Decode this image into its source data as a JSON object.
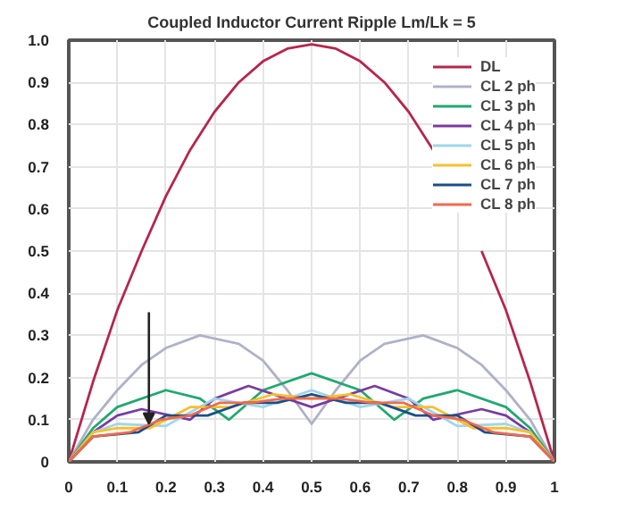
{
  "chart_data": {
    "type": "line",
    "title": "Coupled Inductor Current Ripple Lm/Lk = 5",
    "xlim": [
      0,
      1
    ],
    "xticks": [
      0,
      0.1,
      0.2,
      0.3,
      0.4,
      0.5,
      0.6,
      0.7,
      0.8,
      0.9,
      1
    ],
    "ylim": [
      0,
      1
    ],
    "yticks": [
      0,
      0.1,
      0.2,
      0.3,
      0.4,
      0.5,
      0.6,
      0.7,
      0.8,
      0.9,
      {
        "value": 1,
        "label": "1.0"
      }
    ],
    "grid": true,
    "legend": "top right",
    "marker": "none",
    "line_style": "solid",
    "series": [
      {
        "name": "DL",
        "color": "#b5264c",
        "x": [
          0,
          0.05,
          0.1,
          0.15,
          0.2,
          0.25,
          0.3,
          0.35,
          0.4,
          0.45,
          0.5,
          0.55,
          0.6,
          0.65,
          0.7,
          0.75,
          0.8,
          0.85,
          0.9,
          0.95,
          1
        ],
        "values": [
          0,
          0.19,
          0.36,
          0.5,
          0.63,
          0.74,
          0.83,
          0.9,
          0.95,
          0.98,
          0.99,
          0.98,
          0.95,
          0.9,
          0.83,
          0.74,
          null,
          0.5,
          0.36,
          0.19,
          0
        ]
      },
      {
        "name": "CL 2 ph",
        "color": "#b0b0c8",
        "x": [
          0,
          0.05,
          0.1,
          0.15,
          0.2,
          0.27,
          0.35,
          0.4,
          0.45,
          0.5,
          0.55,
          0.6,
          0.65,
          0.73,
          0.8,
          0.85,
          0.9,
          0.95,
          1
        ],
        "values": [
          0,
          0.1,
          0.17,
          0.23,
          0.27,
          0.3,
          0.28,
          0.24,
          0.17,
          0.09,
          0.17,
          0.24,
          0.28,
          0.3,
          0.27,
          0.23,
          0.17,
          0.1,
          0
        ]
      },
      {
        "name": "CL 3 ph",
        "color": "#20a870",
        "x": [
          0,
          0.05,
          0.1,
          0.2,
          0.27,
          0.33,
          0.4,
          0.5,
          0.6,
          0.67,
          0.73,
          0.8,
          0.9,
          0.95,
          1
        ],
        "values": [
          0,
          0.08,
          0.13,
          0.17,
          0.15,
          0.1,
          0.17,
          0.21,
          0.17,
          0.1,
          0.15,
          0.17,
          0.13,
          0.08,
          0
        ]
      },
      {
        "name": "CL 4 ph",
        "color": "#7a3aa0",
        "x": [
          0,
          0.05,
          0.1,
          0.15,
          0.25,
          0.3,
          0.37,
          0.5,
          0.63,
          0.7,
          0.75,
          0.85,
          0.9,
          0.95,
          1
        ],
        "values": [
          0,
          0.07,
          0.11,
          0.125,
          0.1,
          0.15,
          0.18,
          0.13,
          0.18,
          0.15,
          0.1,
          0.125,
          0.11,
          0.07,
          0
        ]
      },
      {
        "name": "CL 5 ph",
        "color": "#9fd6ea",
        "x": [
          0,
          0.05,
          0.1,
          0.2,
          0.3,
          0.4,
          0.5,
          0.6,
          0.7,
          0.8,
          0.9,
          0.95,
          1
        ],
        "values": [
          0,
          0.07,
          0.09,
          0.085,
          0.15,
          0.13,
          0.17,
          0.13,
          0.15,
          0.085,
          0.09,
          0.07,
          0
        ]
      },
      {
        "name": "CL 6 ph",
        "color": "#f5c030",
        "x": [
          0,
          0.05,
          0.1,
          0.167,
          0.25,
          0.333,
          0.42,
          0.5,
          0.58,
          0.667,
          0.75,
          0.833,
          0.9,
          0.95,
          1
        ],
        "values": [
          0,
          0.07,
          0.08,
          0.08,
          0.13,
          0.13,
          0.16,
          0.15,
          0.16,
          0.13,
          0.13,
          0.08,
          0.08,
          0.07,
          0
        ]
      },
      {
        "name": "CL 7 ph",
        "color": "#1a4f8a",
        "x": [
          0,
          0.05,
          0.143,
          0.2,
          0.286,
          0.36,
          0.429,
          0.5,
          0.571,
          0.64,
          0.714,
          0.8,
          0.857,
          0.95,
          1
        ],
        "values": [
          0,
          0.06,
          0.07,
          0.11,
          0.11,
          0.14,
          0.14,
          0.16,
          0.14,
          0.14,
          0.11,
          0.11,
          0.07,
          0.06,
          0
        ]
      },
      {
        "name": "CL 8 ph",
        "color": "#f06a50",
        "x": [
          0,
          0.05,
          0.125,
          0.19,
          0.25,
          0.31,
          0.375,
          0.44,
          0.5,
          0.56,
          0.625,
          0.69,
          0.75,
          0.81,
          0.875,
          0.95,
          1
        ],
        "values": [
          0,
          0.06,
          0.07,
          0.1,
          0.11,
          0.14,
          0.14,
          0.15,
          0.15,
          0.15,
          0.14,
          0.14,
          0.11,
          0.1,
          0.07,
          0.06,
          0
        ]
      }
    ]
  }
}
